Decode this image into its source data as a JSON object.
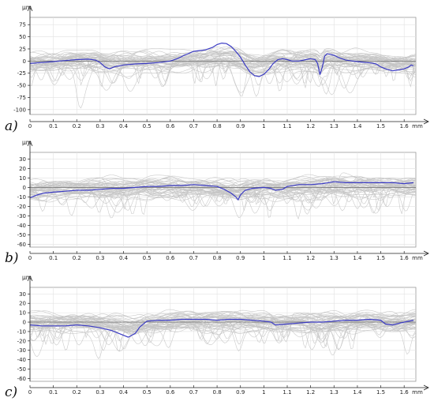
{
  "chart_data": [
    {
      "type": "line",
      "panel_label": "a)",
      "x_unit_label": "mm",
      "y_unit_label": "μm",
      "xlim": [
        0,
        1.65
      ],
      "ylim": [
        -110,
        90
      ],
      "x_ticks": [
        0,
        0.1,
        0.2,
        0.3,
        0.4,
        0.5,
        0.6,
        0.7,
        0.8,
        0.9,
        1,
        1.1,
        1.2,
        1.3,
        1.4,
        1.5,
        1.6
      ],
      "x_tick_labels": [
        "0",
        "0.1",
        "0.2",
        "0.3",
        "0.4",
        "0.5",
        "0.6",
        "0.7",
        "0.8",
        "0.9",
        "1",
        "1.1",
        "1.2",
        "1.3",
        "1.4",
        "1.5",
        "1.6"
      ],
      "y_ticks": [
        75,
        50,
        25,
        0,
        -25,
        -50,
        -75,
        -100
      ],
      "y_tick_labels": [
        "75",
        "50",
        "25",
        "0",
        "-25",
        "-50",
        "-75",
        "-100"
      ],
      "grid": true,
      "background_profiles_color": "#c4c4c4",
      "highlight_color": "#3b3bc4",
      "series": [
        {
          "highlight": true,
          "x": [
            0,
            0.05,
            0.1,
            0.15,
            0.2,
            0.25,
            0.28,
            0.3,
            0.32,
            0.34,
            0.36,
            0.4,
            0.45,
            0.5,
            0.55,
            0.6,
            0.63,
            0.66,
            0.7,
            0.75,
            0.78,
            0.8,
            0.82,
            0.84,
            0.86,
            0.88,
            0.9,
            0.92,
            0.94,
            0.96,
            0.98,
            1.0,
            1.02,
            1.04,
            1.06,
            1.08,
            1.1,
            1.12,
            1.15,
            1.18,
            1.2,
            1.22,
            1.23,
            1.24,
            1.25,
            1.26,
            1.27,
            1.28,
            1.3,
            1.32,
            1.35,
            1.38,
            1.4,
            1.42,
            1.44,
            1.46,
            1.48,
            1.5,
            1.52,
            1.55,
            1.58,
            1.6,
            1.62,
            1.63,
            1.64
          ],
          "y": [
            -5,
            -3,
            -1,
            1,
            3,
            4,
            2,
            -3,
            -12,
            -16,
            -12,
            -8,
            -6,
            -5,
            -3,
            0,
            5,
            12,
            20,
            23,
            28,
            34,
            37,
            36,
            30,
            20,
            8,
            -8,
            -22,
            -30,
            -32,
            -27,
            -18,
            -5,
            3,
            5,
            3,
            0,
            0,
            3,
            5,
            3,
            -5,
            -28,
            -12,
            10,
            15,
            14,
            12,
            7,
            2,
            0,
            -1,
            -2,
            -3,
            -4,
            -6,
            -12,
            -16,
            -20,
            -18,
            -16,
            -12,
            -8,
            -10
          ]
        }
      ]
    },
    {
      "type": "line",
      "panel_label": "b)",
      "x_unit_label": "mm",
      "y_unit_label": "μm",
      "xlim": [
        0,
        1.65
      ],
      "ylim": [
        -63,
        37
      ],
      "x_ticks": [
        0,
        0.1,
        0.2,
        0.3,
        0.4,
        0.5,
        0.6,
        0.7,
        0.8,
        0.9,
        1,
        1.1,
        1.2,
        1.3,
        1.4,
        1.5,
        1.6
      ],
      "x_tick_labels": [
        "0",
        "0.1",
        "0.2",
        "0.3",
        "0.4",
        "0.5",
        "0.6",
        "0.7",
        "0.8",
        "0.9",
        "1",
        "1.1",
        "1.2",
        "1.3",
        "1.4",
        "1.5",
        "1.6"
      ],
      "y_ticks": [
        30,
        20,
        10,
        0,
        -10,
        -20,
        -30,
        -40,
        -50,
        -60
      ],
      "y_tick_labels": [
        "30",
        "20",
        "10",
        "0",
        "-10",
        "-20",
        "-30",
        "-40",
        "-50",
        "-60"
      ],
      "grid": true,
      "background_profiles_color": "#c4c4c4",
      "highlight_color": "#3b3bc4",
      "series": [
        {
          "highlight": true,
          "x": [
            0,
            0.03,
            0.06,
            0.1,
            0.15,
            0.2,
            0.25,
            0.3,
            0.35,
            0.4,
            0.45,
            0.5,
            0.55,
            0.6,
            0.65,
            0.7,
            0.75,
            0.8,
            0.83,
            0.86,
            0.88,
            0.89,
            0.9,
            0.92,
            0.95,
            1.0,
            1.03,
            1.05,
            1.08,
            1.1,
            1.15,
            1.2,
            1.25,
            1.3,
            1.35,
            1.4,
            1.45,
            1.5,
            1.55,
            1.6,
            1.64
          ],
          "y": [
            -11,
            -8,
            -6,
            -5,
            -4,
            -3,
            -3,
            -2,
            -1,
            -1,
            0,
            1,
            1,
            2,
            2,
            3,
            2,
            1,
            -2,
            -6,
            -10,
            -13,
            -8,
            -3,
            -1,
            0,
            -1,
            -3,
            -2,
            1,
            3,
            3,
            4,
            6,
            5,
            5,
            5,
            5,
            5,
            4,
            5
          ]
        }
      ]
    },
    {
      "type": "line",
      "panel_label": "c)",
      "x_unit_label": "mm",
      "y_unit_label": "μm",
      "xlim": [
        0,
        1.65
      ],
      "ylim": [
        -63,
        37
      ],
      "x_ticks": [
        0,
        0.1,
        0.2,
        0.3,
        0.4,
        0.5,
        0.6,
        0.7,
        0.8,
        0.9,
        1,
        1.1,
        1.2,
        1.3,
        1.4,
        1.5,
        1.6
      ],
      "x_tick_labels": [
        "0",
        "0.1",
        "0.2",
        "0.3",
        "0.4",
        "0.5",
        "0.6",
        "0.7",
        "0.8",
        "0.9",
        "1",
        "1.1",
        "1.2",
        "1.3",
        "1.4",
        "1.5",
        "1.6"
      ],
      "y_ticks": [
        30,
        20,
        10,
        0,
        -10,
        -20,
        -30,
        -40,
        -50,
        -60
      ],
      "y_tick_labels": [
        "30",
        "20",
        "10",
        "0",
        "-10",
        "-20",
        "-30",
        "-40",
        "-50",
        "-60"
      ],
      "grid": true,
      "background_profiles_color": "#c4c4c4",
      "highlight_color": "#3b3bc4",
      "series": [
        {
          "highlight": true,
          "x": [
            0,
            0.05,
            0.1,
            0.15,
            0.2,
            0.25,
            0.3,
            0.35,
            0.38,
            0.42,
            0.45,
            0.47,
            0.5,
            0.55,
            0.6,
            0.65,
            0.7,
            0.75,
            0.8,
            0.85,
            0.9,
            0.95,
            1.0,
            1.03,
            1.05,
            1.1,
            1.15,
            1.2,
            1.25,
            1.3,
            1.35,
            1.4,
            1.45,
            1.5,
            1.52,
            1.55,
            1.6,
            1.64
          ],
          "y": [
            -3,
            -4,
            -4,
            -4,
            -3,
            -4,
            -6,
            -9,
            -12,
            -16,
            -12,
            -5,
            1,
            2,
            2,
            3,
            3,
            3,
            2,
            3,
            3,
            2,
            1,
            0,
            -3,
            -2,
            -1,
            0,
            0,
            1,
            2,
            2,
            3,
            2,
            -2,
            -3,
            0,
            2
          ]
        }
      ]
    }
  ]
}
